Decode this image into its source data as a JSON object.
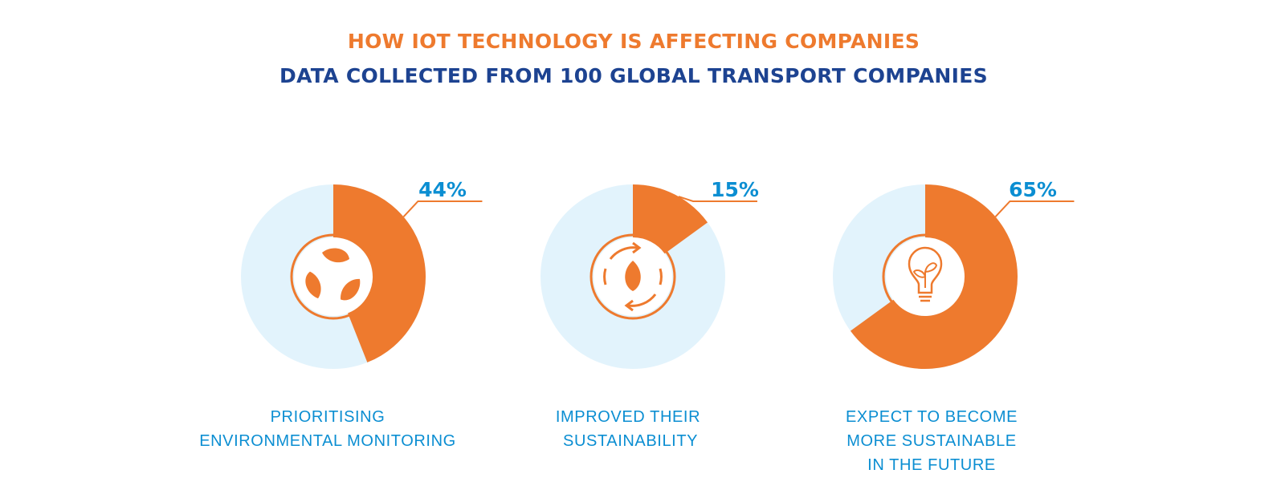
{
  "header": {
    "title": "HOW IOT TECHNOLOGY IS AFFECTING COMPANIES",
    "subtitle": "DATA COLLECTED FROM 100 GLOBAL TRANSPORT COMPANIES"
  },
  "colors": {
    "accent": "#ee7a2e",
    "track": "#e2f3fc",
    "percent_text": "#0b8ed2",
    "caption_text": "#0b8ed2",
    "subtitle_text": "#1d4391"
  },
  "chart_data": [
    {
      "type": "pie",
      "value": 44,
      "value_label": "44%",
      "caption_lines": [
        "PRIORITISING",
        "ENVIRONMENTAL MONITORING"
      ],
      "icon": "recycle-leaves-icon"
    },
    {
      "type": "pie",
      "value": 15,
      "value_label": "15%",
      "caption_lines": [
        "IMPROVED THEIR",
        " SUSTAINABILITY"
      ],
      "icon": "cycle-leaf-icon"
    },
    {
      "type": "pie",
      "value": 65,
      "value_label": "65%",
      "caption_lines": [
        "EXPECT TO BECOME",
        "MORE SUSTAINABLE",
        "IN THE FUTURE"
      ],
      "icon": "eco-lightbulb-icon"
    }
  ]
}
